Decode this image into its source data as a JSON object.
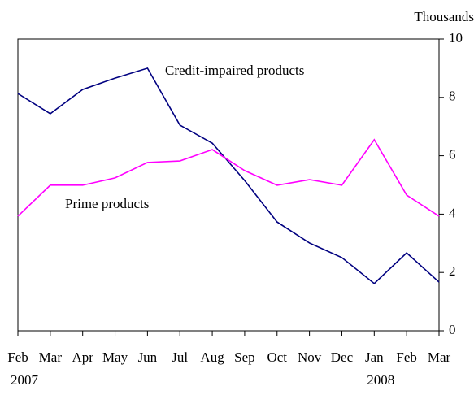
{
  "chart_data": {
    "type": "line",
    "y_unit": "Thousands",
    "categories": [
      "Feb",
      "Mar",
      "Apr",
      "May",
      "Jun",
      "Jul",
      "Aug",
      "Sep",
      "Oct",
      "Nov",
      "Dec",
      "Jan",
      "Feb",
      "Mar"
    ],
    "years": [
      "2007",
      null,
      null,
      null,
      null,
      null,
      null,
      null,
      null,
      null,
      null,
      "2008",
      null,
      null
    ],
    "series": [
      {
        "name": "Credit-impaired products",
        "color": "#000080",
        "values": [
          8.13,
          7.44,
          8.27,
          8.66,
          9.0,
          7.05,
          6.43,
          5.15,
          3.73,
          3.01,
          2.51,
          1.62,
          2.67,
          1.67
        ]
      },
      {
        "name": "Prime products",
        "color": "#ff00ff",
        "values": [
          3.93,
          4.99,
          4.99,
          5.24,
          5.77,
          5.82,
          6.21,
          5.49,
          4.99,
          5.18,
          4.99,
          6.55,
          4.65,
          3.93
        ]
      }
    ],
    "ylim": [
      0,
      10
    ],
    "yticks": [
      0,
      2,
      4,
      6,
      8,
      10
    ],
    "y_axis_side": "right"
  }
}
